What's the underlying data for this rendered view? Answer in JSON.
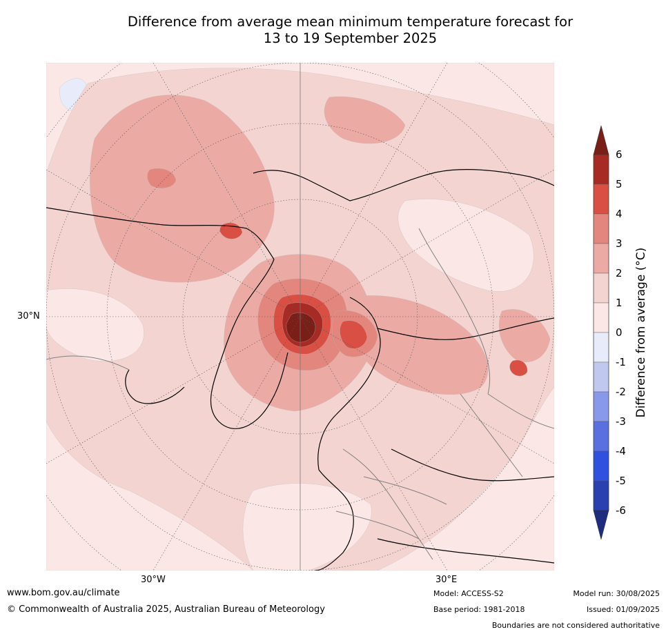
{
  "title": {
    "line1": "Difference from average mean minimum temperature forecast for",
    "line2": "13 to 19 September 2025"
  },
  "map": {
    "projection": "north polar stereographic",
    "lat_label": "30°N",
    "lon_labels": [
      "30°W",
      "30°E"
    ],
    "region_colors": {
      "below_minus1": "#c0c8f0",
      "minus1_to_0": "#e8ecfa",
      "0_to_1": "#fbe8e6",
      "1_to_2": "#f4d4d1",
      "2_to_3": "#ebaaa4",
      "3_to_4": "#e3867e",
      "4_to_5": "#d94f44",
      "5_to_6": "#a82a24",
      "above_6": "#7a1f18"
    },
    "coastline_color": "#000000",
    "border_color": "#808080"
  },
  "colorbar": {
    "label": "Difference from average (°C)",
    "ticks": [
      "6",
      "5",
      "4",
      "3",
      "2",
      "1",
      "0",
      "-1",
      "-2",
      "-3",
      "-4",
      "-5",
      "-6"
    ],
    "colors": [
      "#a82a24",
      "#d94f44",
      "#e3867e",
      "#ebaaa4",
      "#f4d4d1",
      "#fbe8e6",
      "#e8ecfa",
      "#c0c8f0",
      "#8898ea",
      "#5a6fe0",
      "#3050e0",
      "#2a40b0"
    ],
    "top_extend_color": "#7a1f18",
    "bottom_extend_color": "#1e2d80"
  },
  "footer": {
    "website": "www.bom.gov.au/climate",
    "copyright": "© Commonwealth of Australia 2025, Australian Bureau of Meteorology",
    "model": "Model: ACCESS-S2",
    "base_period": "Base period: 1981-2018",
    "model_run": "Model run: 30/08/2025",
    "issued": "Issued: 01/09/2025",
    "disclaimer": "Boundaries are not considered authoritative"
  }
}
